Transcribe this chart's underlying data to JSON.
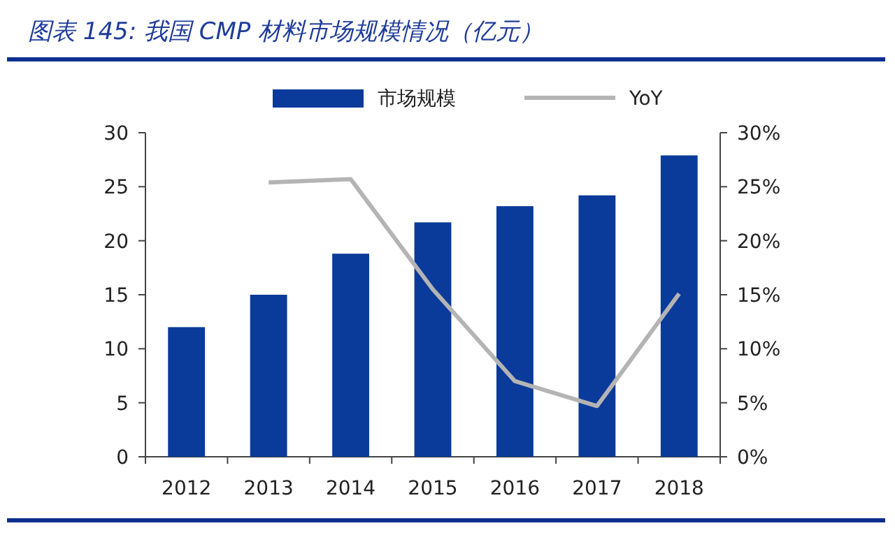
{
  "chart_data": {
    "type": "bar",
    "title": "图表 145: 我国 CMP 材料市场规模情况（亿元）",
    "categories": [
      "2012",
      "2013",
      "2014",
      "2015",
      "2016",
      "2017",
      "2018"
    ],
    "series": [
      {
        "name": "市场规模",
        "color": "#0a3a9a",
        "values": [
          12.0,
          15.0,
          18.8,
          21.7,
          23.2,
          24.2,
          27.9
        ]
      },
      {
        "name": "YoY",
        "type": "line",
        "axis": "y2",
        "color": "#b4b4b4",
        "values": [
          null,
          25.4,
          25.7,
          15.5,
          7.0,
          4.7,
          15.1
        ]
      }
    ],
    "ylim": [
      0,
      30
    ],
    "yticks": [
      0,
      5,
      10,
      15,
      20,
      25,
      30
    ],
    "y2lim": [
      0,
      30
    ],
    "y2ticks": [
      {
        "value": 0,
        "label": "0%"
      },
      {
        "value": 5,
        "label": "5%"
      },
      {
        "value": 10,
        "label": "10%"
      },
      {
        "value": 15,
        "label": "15%"
      },
      {
        "value": 20,
        "label": "20%"
      },
      {
        "value": 25,
        "label": "25%"
      },
      {
        "value": 30,
        "label": "30%"
      }
    ],
    "legend": "top",
    "grid": false
  }
}
